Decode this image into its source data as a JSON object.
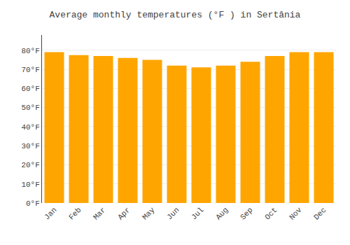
{
  "chart_data": {
    "type": "bar",
    "title": "Average monthly temperatures (°F ) in Sertânia",
    "categories": [
      "Jan",
      "Feb",
      "Mar",
      "Apr",
      "May",
      "Jun",
      "Jul",
      "Aug",
      "Sep",
      "Oct",
      "Nov",
      "Dec"
    ],
    "values": [
      79,
      77.5,
      77,
      76,
      75,
      72,
      71,
      72,
      74,
      77,
      79,
      79
    ],
    "color": "#FFA500",
    "ylim": [
      0,
      88
    ],
    "yticks": [
      {
        "value": 0,
        "label": "0°F"
      },
      {
        "value": 10,
        "label": "10°F"
      },
      {
        "value": 20,
        "label": "20°F"
      },
      {
        "value": 30,
        "label": "30°F"
      },
      {
        "value": 40,
        "label": "40°F"
      },
      {
        "value": 50,
        "label": "50°F"
      },
      {
        "value": 60,
        "label": "60°F"
      },
      {
        "value": 70,
        "label": "70°F"
      },
      {
        "value": 80,
        "label": "80°F"
      }
    ],
    "grid": true
  }
}
